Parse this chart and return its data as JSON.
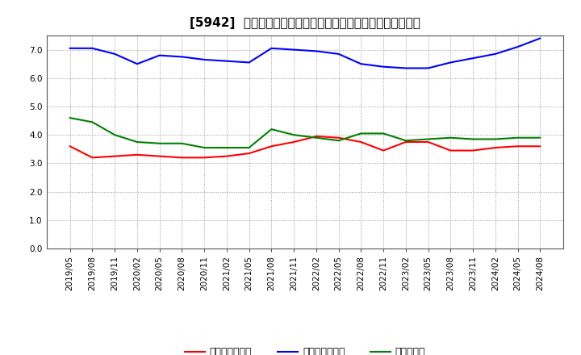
{
  "title": "[5942]  売上債権回転率、買入債務回転率、在庫回転率の推移",
  "x_labels": [
    "2019/05",
    "2019/08",
    "2019/11",
    "2020/02",
    "2020/05",
    "2020/08",
    "2020/11",
    "2021/02",
    "2021/05",
    "2021/08",
    "2021/11",
    "2022/02",
    "2022/05",
    "2022/08",
    "2022/11",
    "2023/02",
    "2023/05",
    "2023/08",
    "2023/11",
    "2024/02",
    "2024/05",
    "2024/08"
  ],
  "sales_receivable": [
    3.6,
    3.2,
    3.25,
    3.3,
    3.25,
    3.2,
    3.2,
    3.25,
    3.35,
    3.6,
    3.75,
    3.95,
    3.9,
    3.75,
    3.45,
    3.75,
    3.75,
    3.45,
    3.45,
    3.55,
    3.6,
    3.6
  ],
  "payable": [
    7.05,
    7.05,
    6.85,
    6.5,
    6.8,
    6.75,
    6.65,
    6.6,
    6.55,
    7.05,
    7.0,
    6.95,
    6.85,
    6.5,
    6.4,
    6.35,
    6.35,
    6.55,
    6.7,
    6.85,
    7.1,
    7.4
  ],
  "inventory": [
    4.6,
    4.45,
    4.0,
    3.75,
    3.7,
    3.7,
    3.55,
    3.55,
    3.55,
    4.2,
    4.0,
    3.9,
    3.8,
    4.05,
    4.05,
    3.8,
    3.85,
    3.9,
    3.85,
    3.85,
    3.9,
    3.9
  ],
  "sales_receivable_color": "#ff0000",
  "payable_color": "#0000ff",
  "inventory_color": "#008000",
  "ylim": [
    0.0,
    7.5
  ],
  "yticks": [
    0.0,
    1.0,
    2.0,
    3.0,
    4.0,
    5.0,
    6.0,
    7.0
  ],
  "background_color": "#ffffff",
  "grid_color": "#aaaaaa",
  "legend_sales": "売上債権回転率",
  "legend_payable": "買入債務回転率",
  "legend_inventory": "在庫回転率",
  "title_fontsize": 11,
  "tick_fontsize": 7.5,
  "legend_fontsize": 9,
  "line_width": 1.5
}
